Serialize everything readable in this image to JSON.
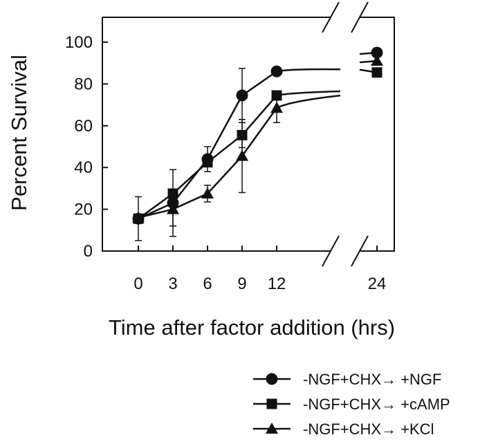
{
  "chart_data": {
    "type": "line",
    "title": "",
    "xlabel": "Time after factor addition (hrs)",
    "ylabel": "Percent Survival",
    "x_ticks": [
      "0",
      "3",
      "6",
      "9",
      "12",
      "24"
    ],
    "y_ticks": [
      "0",
      "20",
      "40",
      "60",
      "80",
      "100"
    ],
    "ylim": [
      0,
      110
    ],
    "x_axis_break": true,
    "legend_position": "bottom-right",
    "series": [
      {
        "name": "-NGF+CHX→ +NGF",
        "marker": "circle",
        "x": [
          0,
          3,
          6,
          9,
          12
        ],
        "y": [
          15.5,
          23,
          44,
          74.5,
          86
        ],
        "yerr": [
          10.5,
          16,
          6,
          13,
          0
        ],
        "x24": 24,
        "y24": 95
      },
      {
        "name": "-NGF+CHX→ +cAMP",
        "marker": "square",
        "x": [
          0,
          3,
          6,
          9,
          12
        ],
        "y": [
          15.5,
          27.5,
          42.5,
          55.5,
          74.5
        ],
        "yerr": [
          0,
          0,
          0,
          6,
          0
        ],
        "x24": 24,
        "y24": 85.5
      },
      {
        "name": "-NGF+CHX→ +KCl",
        "marker": "triangle",
        "x": [
          0,
          3,
          6,
          9,
          12
        ],
        "y": [
          16,
          20,
          27.5,
          45.5,
          68.5
        ],
        "yerr": [
          0,
          8,
          4,
          17.5,
          7
        ],
        "x24": 24,
        "y24": 91
      }
    ]
  }
}
